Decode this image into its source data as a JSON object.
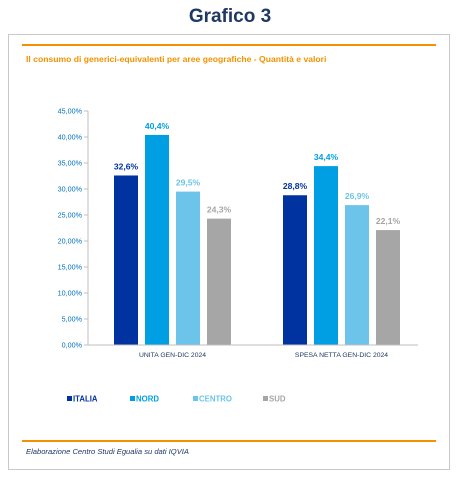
{
  "page": {
    "heading": "Grafico 3",
    "source": "Elaborazione Centro Studi Egualia su dati IQVIA"
  },
  "colors": {
    "accent": "#f39200",
    "heading": "#1f3864",
    "axis_text": "#0070c0"
  },
  "chart_data": {
    "type": "bar",
    "title": "Il consumo di generici-equivalenti per aree geografiche - Quantità e valori",
    "categories": [
      "UNITA GEN-DIC 2024",
      "SPESA NETTA GEN-DIC 2024"
    ],
    "series": [
      {
        "name": "ITALIA",
        "color": "#0033a0",
        "values": [
          32.6,
          28.8
        ],
        "labels": [
          "32,6%",
          "28,8%"
        ]
      },
      {
        "name": "NORD",
        "color": "#009fe3",
        "values": [
          40.4,
          34.4
        ],
        "labels": [
          "40,4%",
          "34,4%"
        ]
      },
      {
        "name": "CENTRO",
        "color": "#6cc4ea",
        "values": [
          29.5,
          26.9
        ],
        "labels": [
          "29,5%",
          "26,9%"
        ]
      },
      {
        "name": "SUD",
        "color": "#a6a6a6",
        "values": [
          24.3,
          22.1
        ],
        "labels": [
          "24,3%",
          "22,1%"
        ]
      }
    ],
    "ylim": [
      0,
      45
    ],
    "yticks": [
      0,
      5,
      10,
      15,
      20,
      25,
      30,
      35,
      40,
      45
    ],
    "ytick_labels": [
      "0,00%",
      "5,00%",
      "10,00%",
      "15,00%",
      "20,00%",
      "25,00%",
      "30,00%",
      "35,00%",
      "40,00%",
      "45,00%"
    ],
    "grid": false,
    "legend": "bottom-left"
  }
}
